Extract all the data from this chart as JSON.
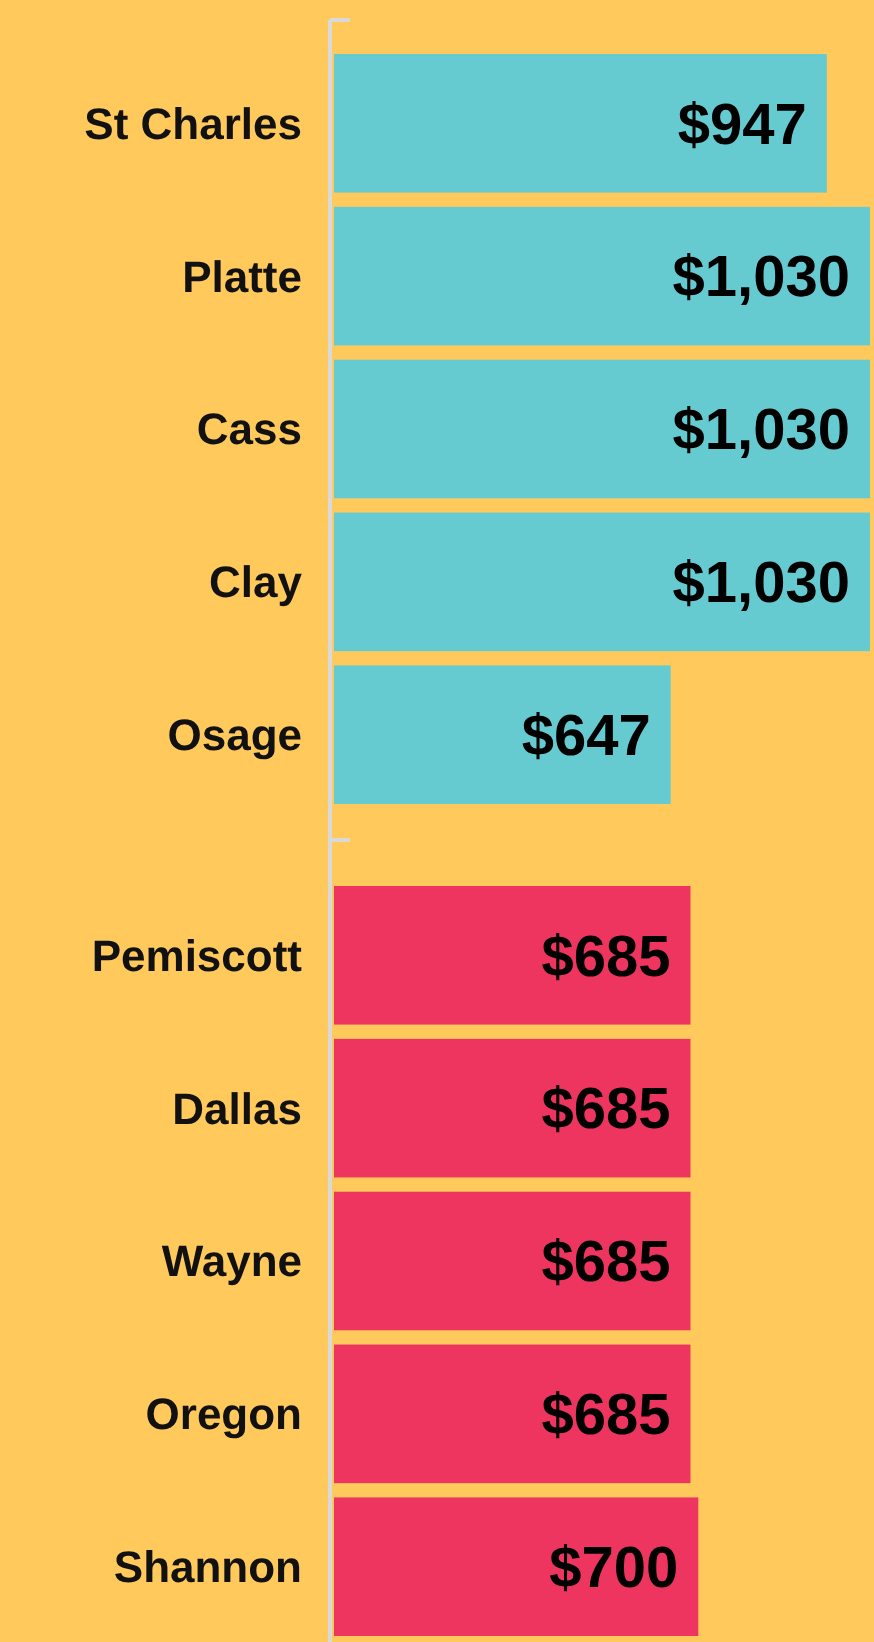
{
  "chart_data": [
    {
      "type": "bar",
      "orientation": "horizontal",
      "categories": [
        "St Charles",
        "Platte",
        "Cass",
        "Clay",
        "Osage"
      ],
      "values": [
        947,
        1030,
        1030,
        1030,
        647
      ],
      "color": "#66cbd0",
      "value_labels": [
        "$947",
        "$1,030",
        "$1,030",
        "$1,030",
        "$647"
      ],
      "xlim": [
        0,
        1030
      ]
    },
    {
      "type": "bar",
      "orientation": "horizontal",
      "categories": [
        "Pemiscott",
        "Dallas",
        "Wayne",
        "Oregon",
        "Shannon"
      ],
      "values": [
        685,
        685,
        685,
        685,
        700
      ],
      "color": "#ee3560",
      "value_labels": [
        "$685",
        "$685",
        "$685",
        "$685",
        "$700"
      ],
      "xlim": [
        0,
        1030
      ]
    }
  ]
}
